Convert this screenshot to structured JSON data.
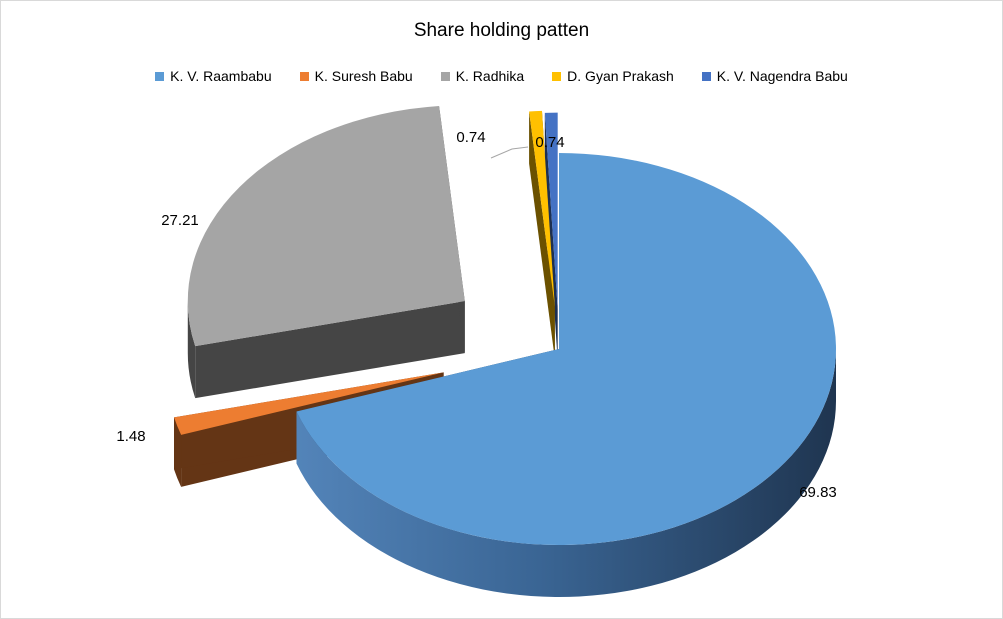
{
  "chart_data": {
    "type": "pie",
    "title": "Share holding patten",
    "legend_position": "top",
    "slices": [
      {
        "label": "K. V. Raambabu",
        "value": 69.83,
        "color": "#5B9BD5",
        "data_label": "69.83"
      },
      {
        "label": "K. Suresh  Babu",
        "value": 1.48,
        "color": "#ED7D31",
        "data_label": "1.48"
      },
      {
        "label": "K. Radhika",
        "value": 27.21,
        "color": "#A5A5A5",
        "data_label": "27.21"
      },
      {
        "label": "D. Gyan Prakash",
        "value": 0.74,
        "color": "#FFC000",
        "data_label": "0.74"
      },
      {
        "label": "K. V. Nagendra Babu",
        "value": 0.74,
        "color": "#4472C4",
        "data_label": "0.74"
      }
    ]
  }
}
